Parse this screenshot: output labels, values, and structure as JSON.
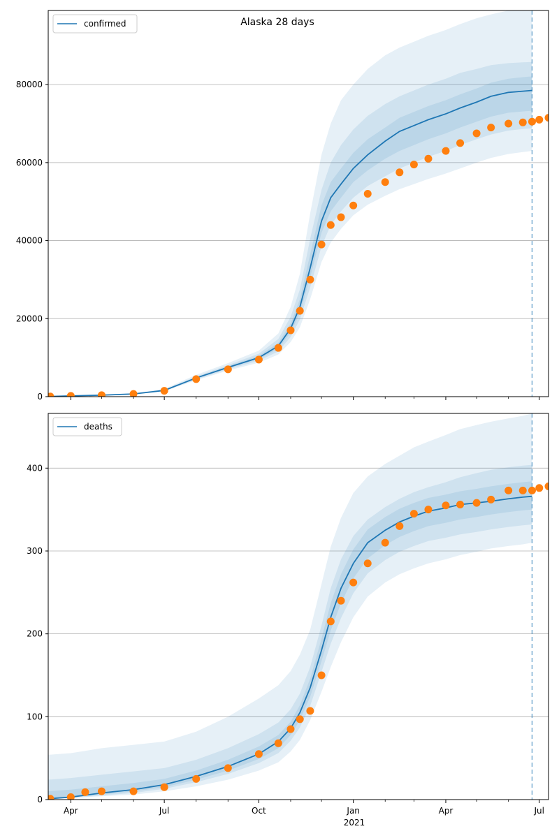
{
  "title": "Alaska 28 days",
  "colors": {
    "model": "#1f77b4",
    "observed": "#ff7f0e",
    "band": "#1f77b4",
    "grid": "#b0b0b0"
  },
  "x_axis": {
    "ticks": [
      {
        "date": "2020-04-01",
        "label": "Apr"
      },
      {
        "date": "2020-07-01",
        "label": "Jul"
      },
      {
        "date": "2020-10-01",
        "label": "Oct"
      },
      {
        "date": "2021-01-01",
        "label": "Jan"
      },
      {
        "date": "2021-04-01",
        "label": "Apr"
      },
      {
        "date": "2021-07-01",
        "label": "Jul"
      }
    ],
    "year_label": "2021",
    "minor_ticks": [
      "2020-05-01",
      "2020-06-01",
      "2020-08-01",
      "2020-09-01",
      "2020-11-01",
      "2020-12-01",
      "2021-02-01",
      "2021-03-01",
      "2021-05-01",
      "2021-06-01"
    ]
  },
  "chart_data": [
    {
      "type": "line",
      "legend": "confirmed",
      "legend_position": "top-left",
      "grid": "y-major",
      "xlim": [
        "2020-03-10",
        "2021-07-10"
      ],
      "ylim": [
        0,
        99000
      ],
      "yticks": [
        0,
        20000,
        40000,
        60000,
        80000
      ],
      "forecast_start": "2021-06-24",
      "model_series": {
        "name": "confirmed",
        "x": [
          "2020-03-10",
          "2020-04-01",
          "2020-05-01",
          "2020-06-01",
          "2020-07-01",
          "2020-08-01",
          "2020-09-01",
          "2020-10-01",
          "2020-10-20",
          "2020-11-01",
          "2020-11-10",
          "2020-11-20",
          "2020-12-01",
          "2020-12-10",
          "2020-12-20",
          "2021-01-01",
          "2021-01-15",
          "2021-02-01",
          "2021-02-15",
          "2021-03-01",
          "2021-03-15",
          "2021-04-01",
          "2021-04-15",
          "2021-05-01",
          "2021-05-15",
          "2021-06-01",
          "2021-06-15",
          "2021-06-24"
        ],
        "y": [
          50,
          200,
          380,
          700,
          1600,
          4800,
          7500,
          10000,
          13000,
          17500,
          23000,
          33000,
          45000,
          51000,
          54500,
          58500,
          62000,
          65500,
          68000,
          69500,
          71000,
          72500,
          74000,
          75500,
          77000,
          78000,
          78300,
          78500
        ]
      },
      "bands": [
        {
          "lower": [
            50,
            190,
            350,
            600,
            1400,
            4200,
            6700,
            8700,
            10800,
            14000,
            17800,
            25000,
            34500,
            39500,
            43000,
            46500,
            49200,
            51500,
            53200,
            54500,
            55800,
            57200,
            58500,
            60000,
            61200,
            62200,
            62700,
            63000
          ],
          "upper": [
            60,
            220,
            420,
            820,
            2000,
            5600,
            8600,
            11800,
            16200,
            23000,
            31500,
            47000,
            62000,
            70000,
            76000,
            80000,
            84000,
            87500,
            89500,
            91000,
            92500,
            94000,
            95500,
            97000,
            98000,
            99000,
            99000,
            99000
          ]
        },
        {
          "lower": [
            50,
            195,
            360,
            640,
            1500,
            4400,
            7000,
            9200,
            11600,
            15300,
            19800,
            28000,
            38500,
            44000,
            47500,
            51000,
            54000,
            56500,
            58500,
            60000,
            61500,
            63000,
            64500,
            66000,
            67200,
            68200,
            68600,
            68800
          ],
          "upper": [
            55,
            210,
            400,
            760,
            1800,
            5200,
            8100,
            11000,
            14800,
            20500,
            27500,
            40500,
            53000,
            60000,
            64500,
            68500,
            72000,
            75000,
            77000,
            78500,
            80000,
            81500,
            83000,
            84000,
            85000,
            85500,
            85700,
            85800
          ]
        },
        {
          "lower": [
            50,
            198,
            370,
            670,
            1550,
            4600,
            7300,
            9600,
            12300,
            16400,
            21400,
            30500,
            42000,
            47500,
            51000,
            55000,
            58000,
            61000,
            63000,
            64500,
            66000,
            67500,
            69000,
            70500,
            71800,
            72800,
            73100,
            73300
          ],
          "upper": [
            52,
            205,
            390,
            730,
            1700,
            5000,
            7800,
            10500,
            13800,
            18800,
            25000,
            36500,
            49000,
            55000,
            58500,
            62500,
            66000,
            69000,
            71500,
            73000,
            74500,
            76000,
            77500,
            79000,
            80500,
            81500,
            81900,
            82100
          ]
        }
      ],
      "observed": {
        "x": [
          "2020-03-12",
          "2020-04-01",
          "2020-05-01",
          "2020-06-01",
          "2020-07-01",
          "2020-08-01",
          "2020-09-01",
          "2020-10-01",
          "2020-10-20",
          "2020-11-01",
          "2020-11-10",
          "2020-11-20",
          "2020-12-01",
          "2020-12-10",
          "2020-12-20",
          "2021-01-01",
          "2021-01-15",
          "2021-02-01",
          "2021-02-15",
          "2021-03-01",
          "2021-03-15",
          "2021-04-01",
          "2021-04-15",
          "2021-05-01",
          "2021-05-15",
          "2021-06-01",
          "2021-06-15",
          "2021-06-24",
          "2021-07-01",
          "2021-07-10"
        ],
        "y": [
          50,
          200,
          380,
          700,
          1500,
          4500,
          7000,
          9500,
          12500,
          17000,
          22000,
          30000,
          39000,
          44000,
          46000,
          49000,
          52000,
          55000,
          57500,
          59500,
          61000,
          63000,
          65000,
          67500,
          69000,
          70000,
          70300,
          70500,
          71000,
          71500
        ]
      }
    },
    {
      "type": "line",
      "legend": "deaths",
      "legend_position": "top-left",
      "grid": "y-major",
      "xlim": [
        "2020-03-10",
        "2021-07-10"
      ],
      "ylim": [
        0,
        466
      ],
      "yticks": [
        0,
        100,
        200,
        300,
        400
      ],
      "forecast_start": "2021-06-24",
      "model_series": {
        "name": "deaths",
        "x": [
          "2020-03-10",
          "2020-04-01",
          "2020-05-01",
          "2020-06-01",
          "2020-07-01",
          "2020-08-01",
          "2020-09-01",
          "2020-10-01",
          "2020-10-20",
          "2020-11-01",
          "2020-11-10",
          "2020-11-20",
          "2020-12-01",
          "2020-12-10",
          "2020-12-20",
          "2021-01-01",
          "2021-01-15",
          "2021-02-01",
          "2021-02-15",
          "2021-03-01",
          "2021-03-15",
          "2021-04-01",
          "2021-04-15",
          "2021-05-01",
          "2021-05-15",
          "2021-06-01",
          "2021-06-15",
          "2021-06-24"
        ],
        "y": [
          1,
          3,
          8,
          12,
          18,
          28,
          40,
          55,
          70,
          86,
          105,
          135,
          180,
          220,
          255,
          285,
          310,
          325,
          335,
          342,
          348,
          352,
          356,
          358,
          360,
          363,
          365,
          366
        ]
      },
      "bands": [
        {
          "lower": [
            1,
            2,
            4,
            6,
            10,
            16,
            24,
            35,
            45,
            58,
            72,
            96,
            130,
            160,
            190,
            220,
            245,
            262,
            272,
            279,
            285,
            290,
            295,
            299,
            303,
            306,
            308,
            310
          ],
          "upper": [
            54,
            56,
            62,
            66,
            70,
            82,
            100,
            122,
            138,
            155,
            175,
            205,
            260,
            305,
            340,
            370,
            390,
            405,
            415,
            425,
            432,
            440,
            447,
            452,
            456,
            460,
            463,
            466
          ]
        },
        {
          "lower": [
            1,
            2,
            5,
            8,
            13,
            21,
            31,
            44,
            56,
            71,
            87,
            113,
            154,
            188,
            219,
            249,
            273,
            289,
            299,
            306,
            312,
            316,
            320,
            323,
            326,
            329,
            331,
            332
          ],
          "upper": [
            24,
            26,
            30,
            34,
            38,
            48,
            62,
            79,
            93,
            109,
            128,
            160,
            210,
            255,
            290,
            318,
            338,
            353,
            363,
            371,
            377,
            383,
            389,
            394,
            398,
            401,
            403,
            404
          ]
        },
        {
          "lower": [
            1,
            3,
            6,
            10,
            15,
            24,
            35,
            49,
            62,
            78,
            96,
            124,
            167,
            204,
            237,
            267,
            291,
            307,
            317,
            324,
            330,
            334,
            338,
            341,
            344,
            347,
            349,
            350
          ],
          "upper": [
            10,
            12,
            16,
            20,
            25,
            35,
            48,
            64,
            78,
            94,
            114,
            146,
            194,
            237,
            272,
            302,
            326,
            341,
            351,
            358,
            364,
            368,
            372,
            375,
            378,
            381,
            383,
            384
          ]
        }
      ],
      "observed": {
        "x": [
          "2020-03-12",
          "2020-04-01",
          "2020-04-15",
          "2020-05-01",
          "2020-06-01",
          "2020-07-01",
          "2020-08-01",
          "2020-09-01",
          "2020-10-01",
          "2020-10-20",
          "2020-11-01",
          "2020-11-10",
          "2020-11-20",
          "2020-12-01",
          "2020-12-10",
          "2020-12-20",
          "2021-01-01",
          "2021-01-15",
          "2021-02-01",
          "2021-02-15",
          "2021-03-01",
          "2021-03-15",
          "2021-04-01",
          "2021-04-15",
          "2021-05-01",
          "2021-05-15",
          "2021-06-01",
          "2021-06-15",
          "2021-06-24",
          "2021-07-01",
          "2021-07-10"
        ],
        "y": [
          1,
          3,
          9,
          10,
          10,
          15,
          25,
          38,
          55,
          68,
          85,
          97,
          107,
          150,
          215,
          240,
          262,
          285,
          310,
          330,
          345,
          350,
          355,
          356,
          358,
          362,
          373,
          373,
          373,
          376,
          378
        ]
      }
    }
  ]
}
